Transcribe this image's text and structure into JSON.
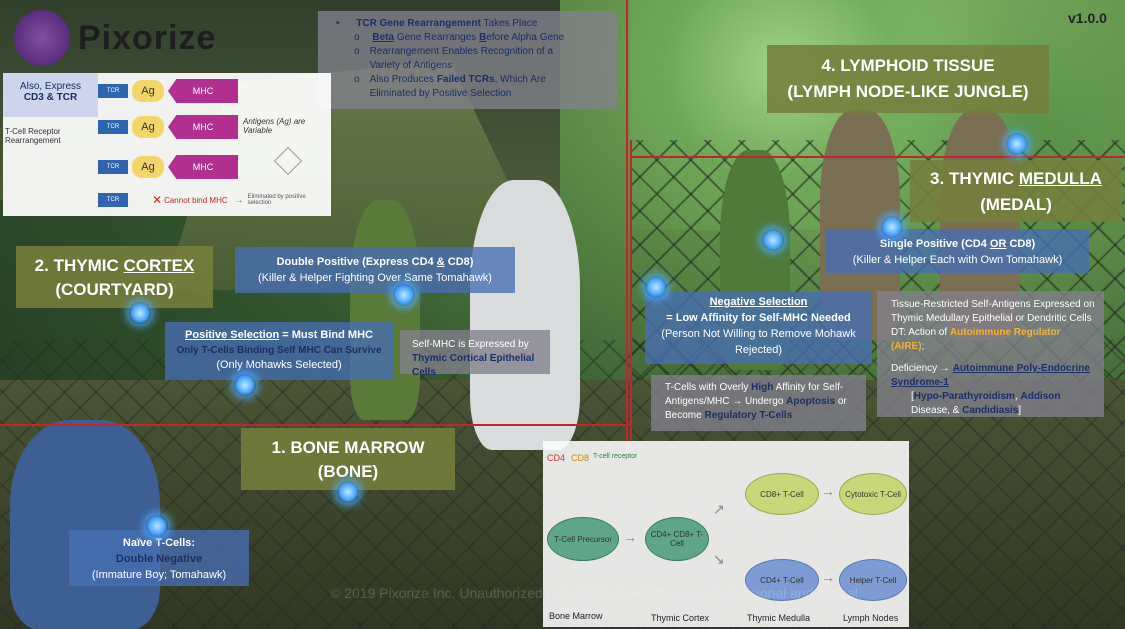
{
  "app": {
    "logo_text": "Pixorize",
    "version": "v1.0.0"
  },
  "top_info": {
    "line1_bold": "TCR Gene Rearrangement",
    "line1_rest": " Takes Place",
    "sub1_bold_u": "Beta",
    "sub1_mid": " Gene Rearranges ",
    "sub1_bold2_u": "B",
    "sub1_rest": "efore Alpha Gene",
    "sub2": "Rearrangement Enables Recognition of a Variety of Antigens",
    "sub3_start": "Also Produces ",
    "sub3_bold": "Failed TCRs",
    "sub3_rest": ", Which Are Eliminated by Positive Selection",
    "bullet": "•",
    "subbullet": "o"
  },
  "tcr_diagram": {
    "also_express": "Also, Express",
    "cd3_tcr": "CD3 & TCR",
    "rearrangement": "T-Cell Receptor Rearrangement",
    "antigens_variable": "Antigens (Ag) are Variable",
    "ag": "Ag",
    "mhc": "MHC",
    "tcr": "TCR",
    "cannot_bind": "Cannot bind MHC",
    "eliminated": "Eliminated by positive selection"
  },
  "stations": {
    "lymphoid": {
      "title": "4. LYMPHOID TISSUE",
      "subtitle": "(LYMPH NODE-LIKE JUNGLE)"
    },
    "medulla": {
      "title_pre": "3. THYMIC ",
      "title_u": "MEDULLA",
      "subtitle": "(MEDAL)"
    },
    "cortex": {
      "title_pre": "2. THYMIC ",
      "title_u": "CORTEX",
      "subtitle": "(COURTYARD)"
    },
    "marrow": {
      "title": "1. BONE MARROW",
      "subtitle": "(BONE)"
    }
  },
  "notes": {
    "double_positive": {
      "title_pre": "Double Positive (Express CD4 ",
      "title_u": "&",
      "title_post": " CD8)",
      "sub": "(Killer & Helper Fighting Over Same Tomahawk)"
    },
    "single_positive": {
      "title_pre": "Single Positive (CD4 ",
      "title_u": "OR",
      "title_post": " CD8)",
      "sub": "(Killer & Helper Each with Own Tomahawk)"
    },
    "positive_selection": {
      "title_u": "Positive Selection",
      "title_rest": " = Must Bind MHC",
      "line2": "Only T-Cells Binding Self MHC Can Survive",
      "line3": "(Only Mohawks Selected)"
    },
    "self_mhc": {
      "line1": "Self-MHC is Expressed by",
      "line2": "Thymic Cortical Epithelial Cells"
    },
    "negative_selection": {
      "title_u": "Negative Selection",
      "line2": "= Low Affinity for Self-MHC Needed",
      "line3": "(Person Not Willing to Remove Mohawk Rejected)"
    },
    "high_affinity": {
      "pre": "T-Cells with Overly ",
      "bold": "High",
      "mid": " Affinity for Self-Antigens/MHC → Undergo ",
      "bold2": "Apoptosis",
      "mid2": " or Become ",
      "bold3": "Regulatory T-Cells"
    },
    "tissue_restricted": {
      "line1": "Tissue-Restricted Self-Antigens Expressed on Thymic Medullary Epithelial or Dendritic Cells",
      "line2_pre": "DT: Action of ",
      "aire": "Autoimmune Regulator (AIRE)",
      "line2_post": ";",
      "def_pre": "Deficiency → ",
      "def_bold": "Autoimmune Poly-Endocrine Syndrome-1",
      "bracket_pre": "[",
      "hypo": "Hypo-Parathyroidism",
      "sep1": ", ",
      "addison": "Addison",
      "addison_rest": " Disease, & ",
      "candida": "Candidiasis",
      "bracket_post": "]"
    },
    "naive": {
      "line1": "Naïve T-Cells:",
      "line2": "Double Negative",
      "line3": "(Immature Boy; Tomahawk)"
    }
  },
  "flow_diagram": {
    "cd4": "CD4",
    "cd8": "CD8",
    "tcr": "T-cell receptor",
    "precursor": "T-Cell Precursor",
    "dp_cell": "CD4+ CD8+ T-Cell",
    "cd8_cell": "CD8+ T-Cell",
    "cd4_cell": "CD4+ T-Cell",
    "cytotoxic": "Cytotoxic T-Cell",
    "helper": "Helper T-Cell",
    "labels": [
      "Bone Marrow",
      "Thymic Cortex",
      "Thymic Medulla",
      "Lymph Nodes"
    ]
  },
  "watermark": "© 2019 Pixorize Inc. Unauthorized reproduction violates your professional and ethical"
}
